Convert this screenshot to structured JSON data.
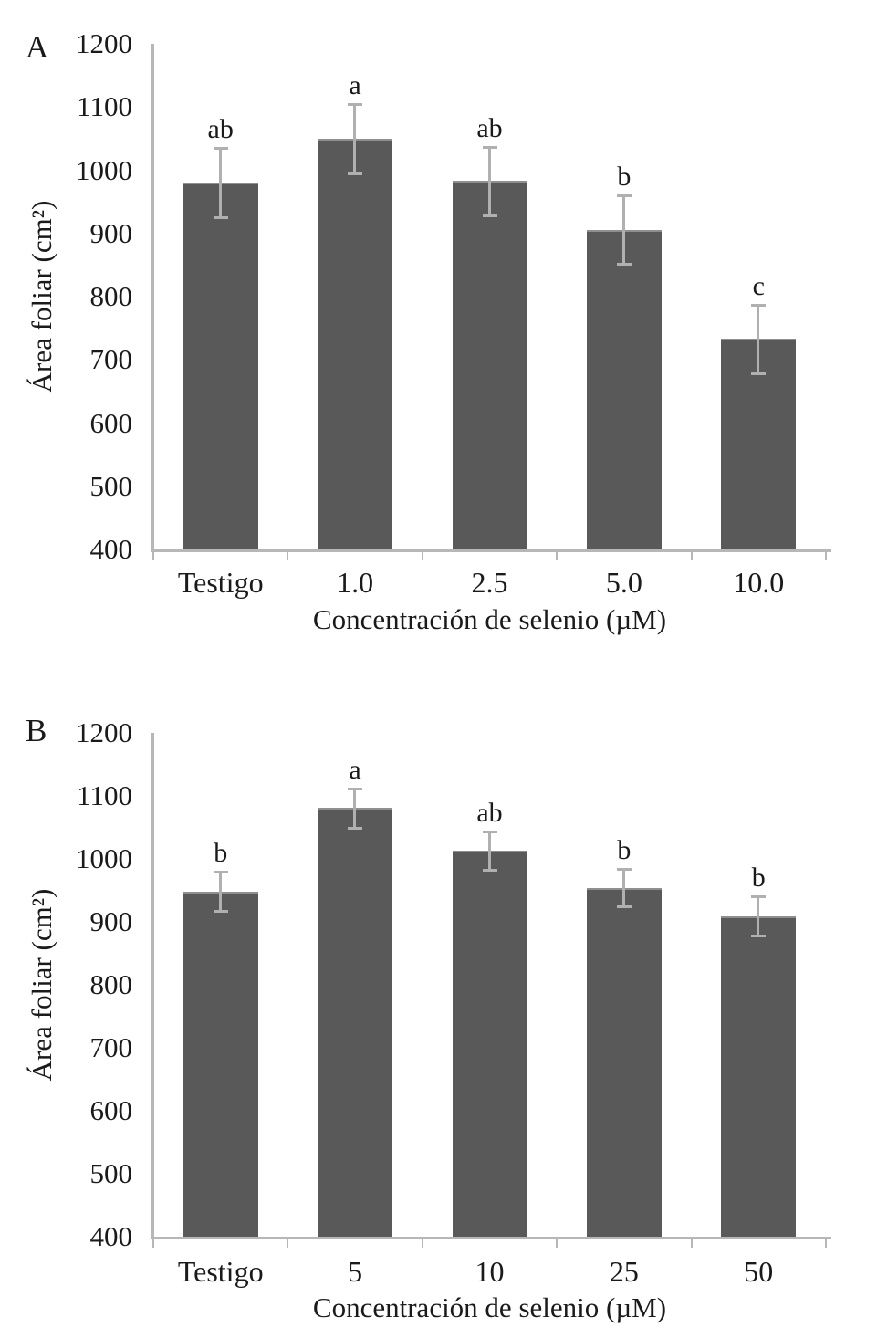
{
  "chart_data": [
    {
      "type": "bar",
      "panel_label": "A",
      "xlabel": "Concentración de selenio (µM)",
      "ylabel": "Área foliar (cm²)",
      "ylim": [
        400,
        1200
      ],
      "yticks": [
        "1200",
        "1100",
        "1000",
        "900",
        "800",
        "700",
        "600",
        "500",
        "400"
      ],
      "categories": [
        "Testigo",
        "1.0",
        "2.5",
        "5.0",
        "10.0"
      ],
      "values": [
        980,
        1050,
        983,
        906,
        733
      ],
      "errors": [
        55,
        55,
        54,
        54,
        54
      ],
      "sig_letters": [
        "ab",
        "a",
        "ab",
        "b",
        "c"
      ],
      "legend": "none",
      "grid": "off",
      "bar_color": "#595959",
      "bar_top_edge_color": "#8f8f8f",
      "error_bar_color": "#b0b0b0",
      "axis_color": "#b7b7b7",
      "text_color": "#1a1a1a"
    },
    {
      "type": "bar",
      "panel_label": "B",
      "xlabel": "Concentración de selenio (µM)",
      "ylabel": "Área foliar (cm²)",
      "ylim": [
        400,
        1200
      ],
      "yticks": [
        "1200",
        "1100",
        "1000",
        "900",
        "800",
        "700",
        "600",
        "500",
        "400"
      ],
      "categories": [
        "Testigo",
        "5",
        "10",
        "25",
        "50"
      ],
      "values": [
        948,
        1081,
        1013,
        954,
        909
      ],
      "errors": [
        31,
        31,
        30,
        30,
        31
      ],
      "sig_letters": [
        "b",
        "a",
        "ab",
        "b",
        "b"
      ],
      "legend": "none",
      "grid": "off",
      "bar_color": "#595959",
      "bar_top_edge_color": "#8f8f8f",
      "error_bar_color": "#b0b0b0",
      "axis_color": "#b7b7b7",
      "text_color": "#1a1a1a"
    }
  ]
}
